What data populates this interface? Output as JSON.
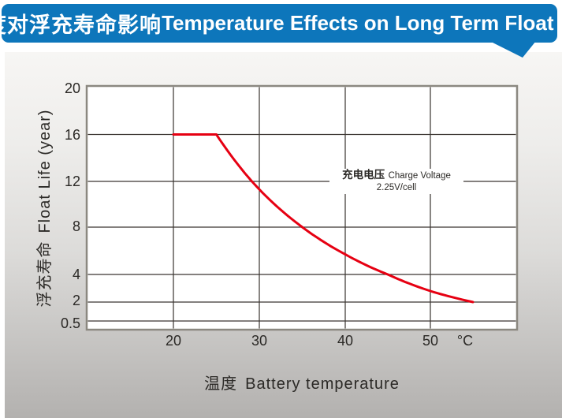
{
  "header": {
    "title_cn": "温度对浮充寿命影响",
    "title_en": "Temperature Effects on Long Term Float Life",
    "banner_color": "#0d76bb"
  },
  "chart_data": {
    "type": "line",
    "title_cn": "温度对浮充寿命影响",
    "title_en": "Temperature Effects on Long Term Float Life",
    "x_axis": {
      "label_cn": "温度",
      "label_en": "Battery temperature",
      "unit": "°C",
      "ticks": [
        20,
        30,
        40,
        50
      ],
      "tick_labels": [
        "20",
        "30",
        "40",
        "50"
      ],
      "range_shown": [
        10,
        60
      ]
    },
    "y_axis": {
      "label_cn": "浮充寿命",
      "label_en": "Float Life (year)",
      "ticks": [
        20,
        16,
        12,
        8,
        4,
        2,
        0.5
      ],
      "tick_labels": [
        "20",
        "16",
        "12",
        "8",
        "4",
        "2",
        "0.5"
      ],
      "scale": "custom-compressed-below-4"
    },
    "grid": true,
    "legend": "none",
    "series": [
      {
        "name": "float-life-vs-temperature",
        "color": "#e60012",
        "points": [
          [
            20,
            16
          ],
          [
            25,
            16
          ],
          [
            30,
            11.3
          ],
          [
            35,
            8
          ],
          [
            40,
            5.7
          ],
          [
            45,
            4
          ],
          [
            50,
            2.8
          ],
          [
            55,
            2
          ]
        ],
        "note": "flat at 16 years from 20-25°C, life halves every 10°C above 25°C, ends at 55°C = 2 years"
      }
    ],
    "annotation": {
      "line1_cn": "充电电压",
      "line1_en": "Charge Voltage",
      "line2": "2.25V/cell"
    }
  }
}
